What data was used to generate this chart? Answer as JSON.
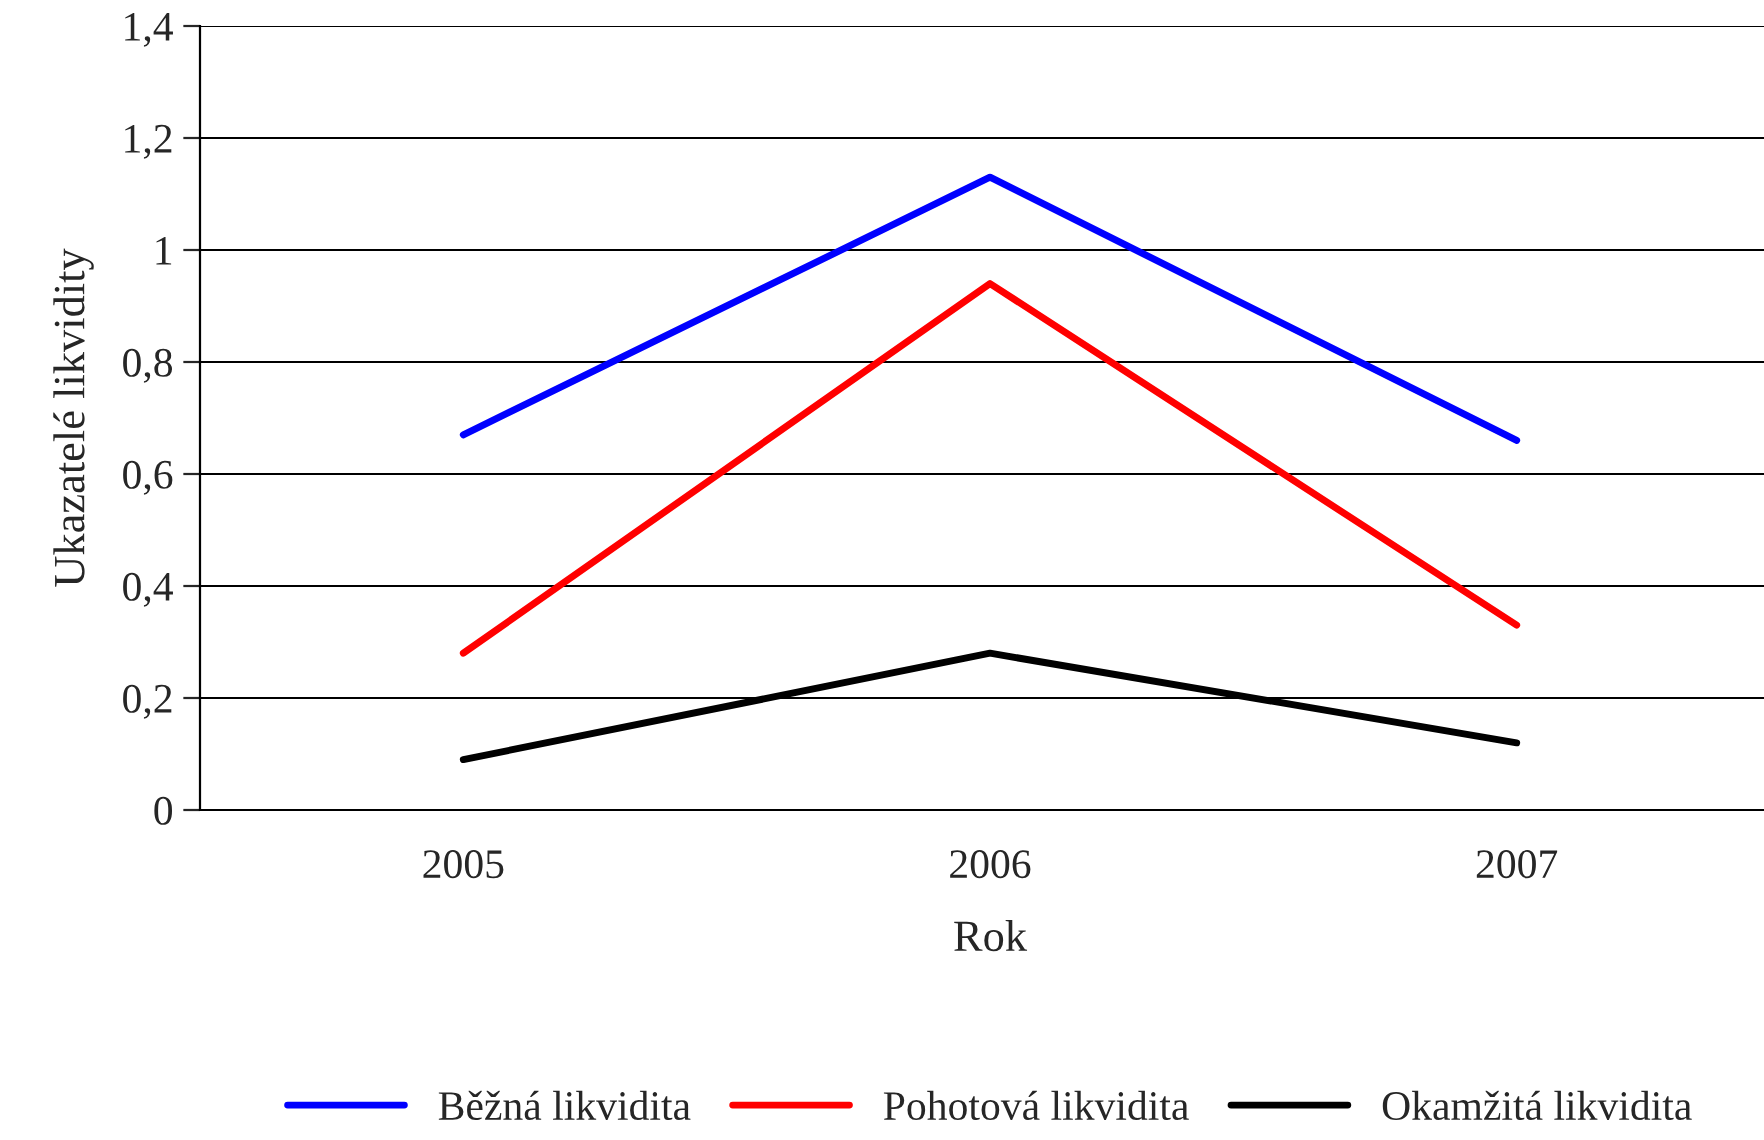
{
  "chart_data": {
    "type": "line",
    "xlabel": "Rok",
    "ylabel": "Ukazatelé likvidity",
    "categories": [
      "2005",
      "2006",
      "2007"
    ],
    "series": [
      {
        "name": "Běžná likvidita",
        "color": "#0000ff",
        "values": [
          0.67,
          1.13,
          0.66
        ]
      },
      {
        "name": "Pohotová likvidita",
        "color": "#ff0000",
        "values": [
          0.28,
          0.94,
          0.33
        ]
      },
      {
        "name": "Okamžitá likvidita",
        "color": "#000000",
        "values": [
          0.09,
          0.28,
          0.12
        ]
      }
    ],
    "ylim": [
      0,
      1.4
    ],
    "yticks": [
      0,
      {
        "value": 0.2,
        "label": "0,2"
      },
      {
        "value": 0.4,
        "label": "0,4"
      },
      {
        "value": 0.6,
        "label": "0,6"
      },
      {
        "value": 0.8,
        "label": "0,8"
      },
      1,
      {
        "value": 1.2,
        "label": "1,2"
      },
      {
        "value": 1.4,
        "label": "1,4"
      }
    ],
    "grid": "y",
    "legend": "bottom",
    "marker": "none",
    "line_style": "solid"
  }
}
